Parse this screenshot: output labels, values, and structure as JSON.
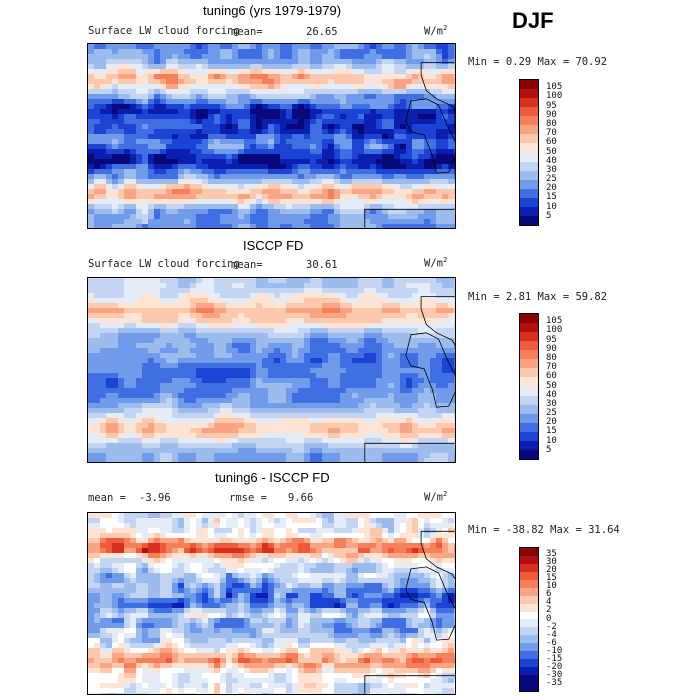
{
  "season": "DJF",
  "panels": [
    {
      "title": "tuning6 (yrs 1979-1979)",
      "subtitle": "Surface LW cloud forcing",
      "mean_label": "mean=",
      "mean_value": "26.65",
      "rmse_label": "",
      "rmse_value": "",
      "units": "W/m",
      "units_exp": "2",
      "stats": "Min =   0.29 Max =  70.92",
      "colorbar": {
        "labels": [
          "105",
          "100",
          "95",
          "90",
          "80",
          "70",
          "60",
          "50",
          "40",
          "30",
          "25",
          "20",
          "15",
          "10",
          "5"
        ],
        "colors": [
          "#8b0000",
          "#b30f12",
          "#d7301f",
          "#ef5a3a",
          "#f57f5b",
          "#f9a585",
          "#fcc8ae",
          "#fde4d4",
          "#e4ecf8",
          "#c3d5f2",
          "#9cbcee",
          "#6f9bea",
          "#3f6fe3",
          "#1c44d4",
          "#0a1fb0",
          "#08087a"
        ]
      },
      "field": "model"
    },
    {
      "title": "ISCCP FD",
      "subtitle": "Surface LW cloud forcing",
      "mean_label": "mean=",
      "mean_value": "30.61",
      "rmse_label": "",
      "rmse_value": "",
      "units": "W/m",
      "units_exp": "2",
      "stats": "Min =   2.81 Max =  59.82",
      "colorbar": {
        "labels": [
          "105",
          "100",
          "95",
          "90",
          "80",
          "70",
          "60",
          "50",
          "40",
          "30",
          "25",
          "20",
          "15",
          "10",
          "5"
        ],
        "colors": [
          "#8b0000",
          "#b30f12",
          "#d7301f",
          "#ef5a3a",
          "#f57f5b",
          "#f9a585",
          "#fcc8ae",
          "#fde4d4",
          "#e4ecf8",
          "#c3d5f2",
          "#9cbcee",
          "#6f9bea",
          "#3f6fe3",
          "#1c44d4",
          "#0a1fb0",
          "#08087a"
        ]
      },
      "field": "obs"
    },
    {
      "title": "tuning6 - ISCCP FD",
      "subtitle": "",
      "mean_label": "mean =",
      "mean_value": "-3.96",
      "rmse_label": "rmse =",
      "rmse_value": "9.66",
      "units": "W/m",
      "units_exp": "2",
      "stats": "Min = -38.82 Max =  31.64",
      "colorbar": {
        "labels": [
          "35",
          "30",
          "20",
          "15",
          "10",
          "6",
          "4",
          "2",
          "0",
          "-2",
          "-4",
          "-6",
          "-10",
          "-15",
          "-20",
          "-30",
          "-35"
        ],
        "colors": [
          "#8b0000",
          "#b30f12",
          "#d7301f",
          "#ef5a3a",
          "#f57f5b",
          "#f9a585",
          "#fcc8ae",
          "#fde4d4",
          "#ffffff",
          "#e4ecf8",
          "#c3d5f2",
          "#9cbcee",
          "#6f9bea",
          "#3f6fe3",
          "#1c44d4",
          "#0a1fb0",
          "#08087a",
          "#08087a"
        ]
      },
      "field": "diff"
    }
  ]
}
